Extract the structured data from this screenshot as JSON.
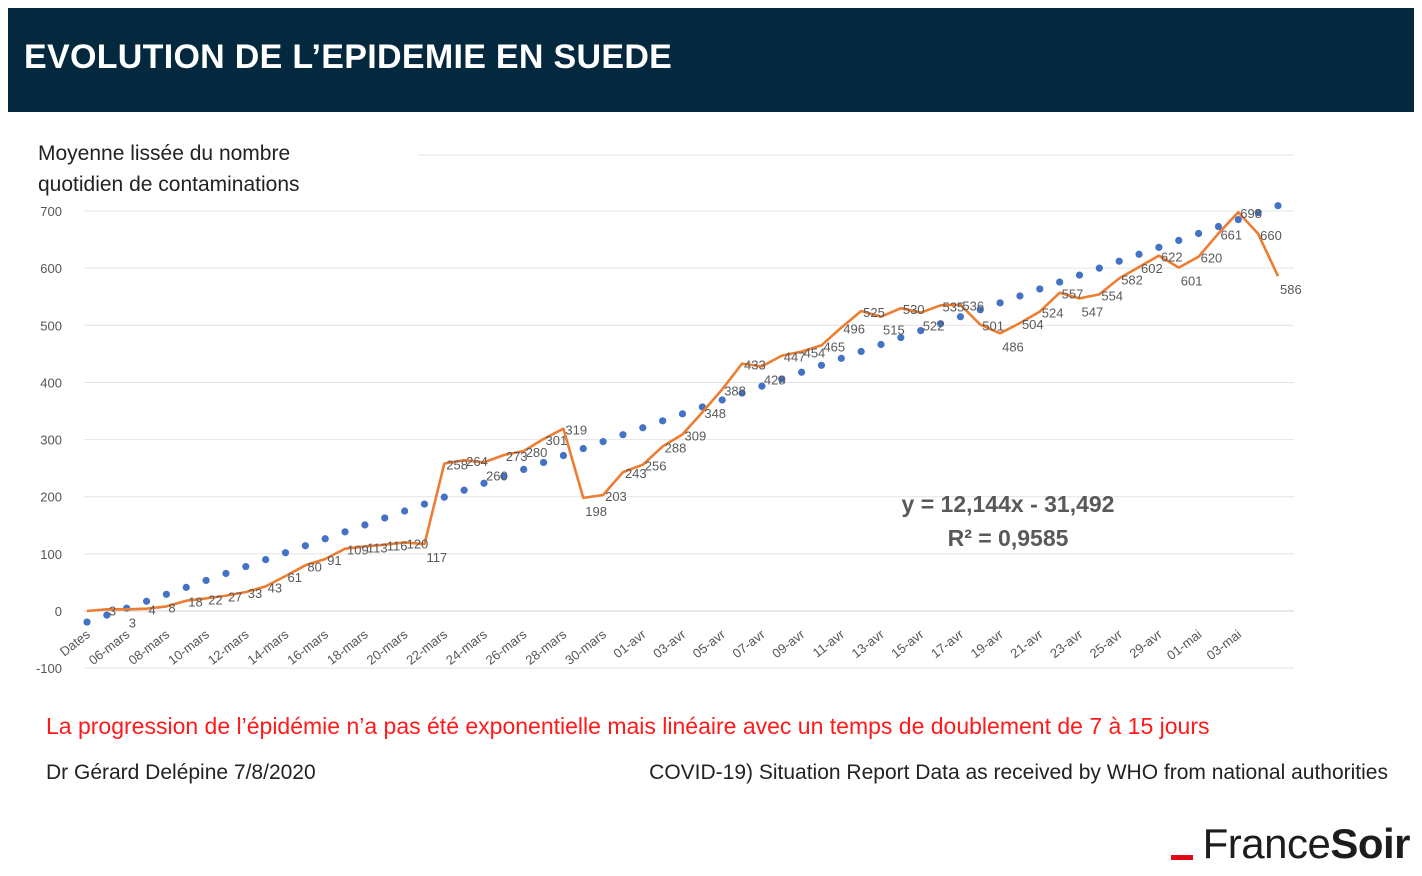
{
  "header": {
    "title": "EVOLUTION DE L’EPIDEMIE EN SUEDE"
  },
  "chart_data": {
    "type": "line",
    "title_lines": [
      "Moyenne lissée du nombre",
      "quotidien de contaminations"
    ],
    "xlabel": "",
    "ylabel": "",
    "ylim": [
      -100,
      700
    ],
    "yticks": [
      -100,
      0,
      100,
      200,
      300,
      400,
      500,
      600,
      700
    ],
    "grid": true,
    "x_tick_labels": [
      "Dates",
      "06-mars",
      "08-mars",
      "10-mars",
      "12-mars",
      "14-mars",
      "16-mars",
      "18-mars",
      "20-mars",
      "22-mars",
      "24-mars",
      "26-mars",
      "28-mars",
      "30-mars",
      "01-avr",
      "03-avr",
      "05-avr",
      "07-avr",
      "09-avr",
      "11-avr",
      "13-avr",
      "15-avr",
      "17-avr",
      "19-avr",
      "21-avr",
      "23-avr",
      "25-avr",
      "29-avr",
      "01-mai",
      "03-mai"
    ],
    "series": [
      {
        "values": [
          0,
          3,
          3,
          4,
          8,
          18,
          22,
          27,
          33,
          43,
          61,
          80,
          91,
          109,
          113,
          116,
          120,
          117,
          258,
          264,
          260,
          273,
          280,
          301,
          319,
          198,
          203,
          243,
          256,
          288,
          309,
          348,
          388,
          433,
          428,
          447,
          454,
          465,
          496,
          525,
          515,
          530,
          522,
          535,
          536,
          501,
          486,
          504,
          524,
          557,
          547,
          554,
          582,
          602,
          622,
          601,
          620,
          661,
          698,
          660,
          586
        ],
        "color": "#ed7d31"
      }
    ],
    "trendline": {
      "style": "dotted",
      "color": "#4472c4",
      "slope": 12.144,
      "intercept": -31.492,
      "equation_label": "y = 12,144x - 31,492",
      "r2_label": "R² = 0,9585"
    }
  },
  "footer": {
    "caption": "La progression de l’épidémie n’a pas été exponentielle mais linéaire avec un temps de doublement de 7 à 15 jours",
    "author": "Dr Gérard Delépine 7/8/2020",
    "source": "COVID-19) Situation Report Data as received by WHO from national authorities"
  },
  "logo": {
    "part1": "France",
    "part2": "Soir",
    "accent_color": "#e30613"
  }
}
